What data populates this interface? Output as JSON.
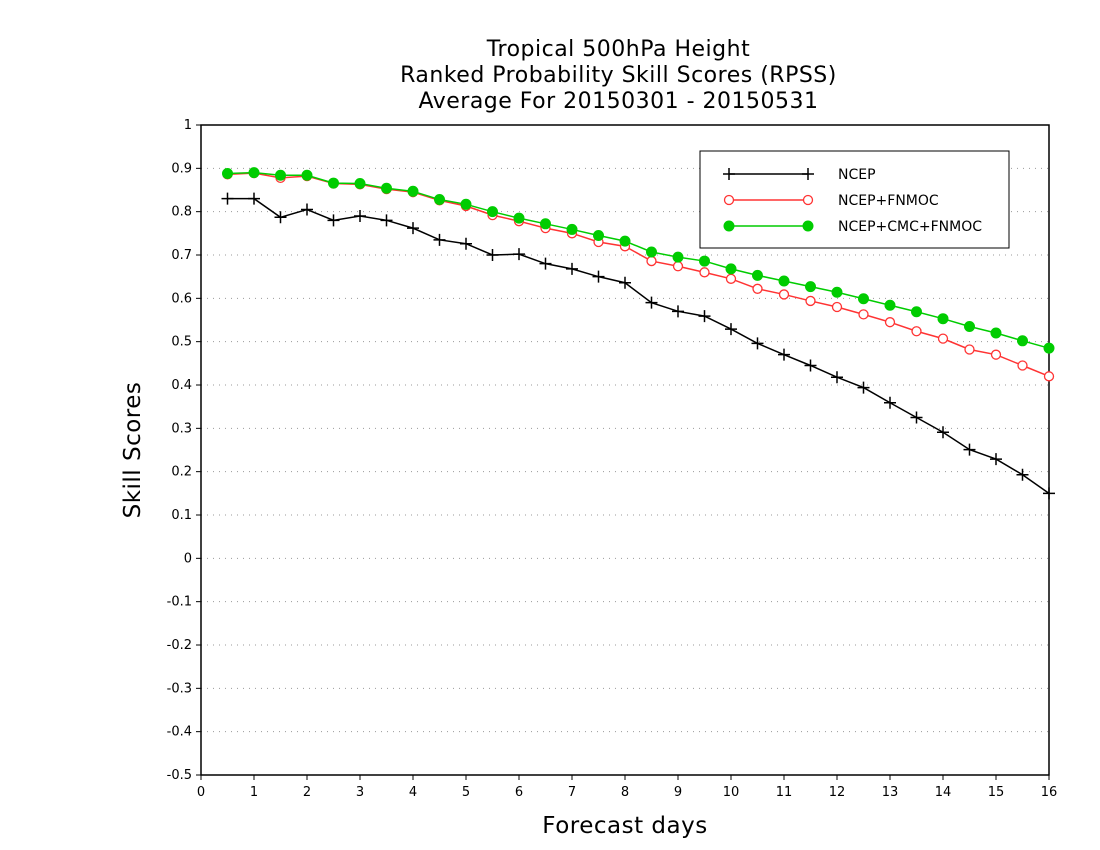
{
  "chart_data": {
    "type": "line",
    "title": [
      "Tropical 500hPa Height",
      "Ranked Probability Skill Scores (RPSS)",
      "Average For 20150301 - 20150531"
    ],
    "xlabel": "Forecast days",
    "ylabel": "Skill Scores",
    "xlim": [
      0,
      16
    ],
    "ylim": [
      -0.5,
      1
    ],
    "x_ticks": [
      "0",
      "1",
      "2",
      "3",
      "4",
      "5",
      "6",
      "7",
      "8",
      "9",
      "10",
      "11",
      "12",
      "13",
      "14",
      "15",
      "16"
    ],
    "y_ticks": [
      "-0.5",
      "-0.4",
      "-0.3",
      "-0.2",
      "-0.1",
      "0",
      "0.1",
      "0.2",
      "0.3",
      "0.4",
      "0.5",
      "0.6",
      "0.7",
      "0.8",
      "0.9",
      "1"
    ],
    "grid": "horizontal-dotted",
    "legend": "top-right",
    "x": [
      0.5,
      1,
      1.5,
      2,
      2.5,
      3,
      3.5,
      4,
      4.5,
      5,
      5.5,
      6,
      6.5,
      7,
      7.5,
      8,
      8.5,
      9,
      9.5,
      10,
      10.5,
      11,
      11.5,
      12,
      12.5,
      13,
      13.5,
      14,
      14.5,
      15,
      15.5,
      16
    ],
    "series": [
      {
        "name": "NCEP",
        "color": "#000000",
        "marker": "plus",
        "values": [
          0.83,
          0.83,
          0.787,
          0.805,
          0.78,
          0.79,
          0.78,
          0.762,
          0.735,
          0.726,
          0.7,
          0.702,
          0.68,
          0.668,
          0.65,
          0.636,
          0.59,
          0.57,
          0.559,
          0.529,
          0.496,
          0.47,
          0.445,
          0.418,
          0.394,
          0.359,
          0.325,
          0.291,
          0.251,
          0.229,
          0.193,
          0.15
        ]
      },
      {
        "name": "NCEP+FNMOC",
        "color": "#ff3333",
        "marker": "open-circle",
        "values": [
          0.886,
          0.889,
          0.878,
          0.882,
          0.865,
          0.863,
          0.852,
          0.845,
          0.826,
          0.813,
          0.792,
          0.778,
          0.762,
          0.75,
          0.73,
          0.72,
          0.686,
          0.674,
          0.66,
          0.645,
          0.622,
          0.609,
          0.594,
          0.58,
          0.563,
          0.545,
          0.524,
          0.507,
          0.482,
          0.47,
          0.445,
          0.42
        ]
      },
      {
        "name": "NCEP+CMC+FNMOC",
        "color": "#00cc00",
        "marker": "filled-circle",
        "values": [
          0.888,
          0.89,
          0.884,
          0.884,
          0.866,
          0.865,
          0.854,
          0.847,
          0.828,
          0.817,
          0.8,
          0.785,
          0.772,
          0.759,
          0.745,
          0.732,
          0.707,
          0.695,
          0.686,
          0.668,
          0.653,
          0.64,
          0.627,
          0.614,
          0.599,
          0.584,
          0.569,
          0.553,
          0.535,
          0.52,
          0.502,
          0.485
        ]
      }
    ]
  }
}
